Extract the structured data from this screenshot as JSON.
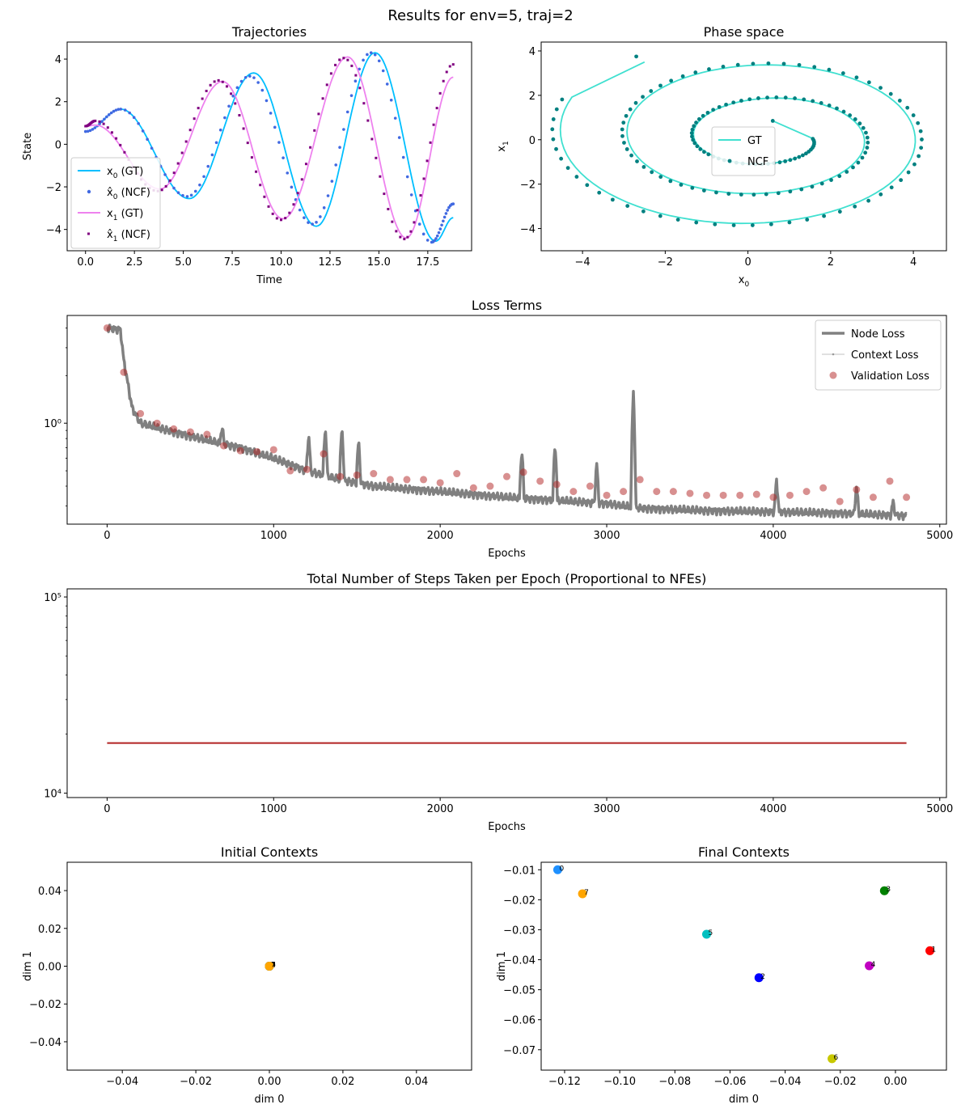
{
  "figure": {
    "suptitle": "Results for env=5, traj=2"
  },
  "colors": {
    "x0_gt": "#00bfff",
    "x0_ncf": "#4169e1",
    "x1_gt": "#ee82ee",
    "x1_ncf": "#800080",
    "phase_gt": "#40e0d0",
    "phase_ncf": "#008080",
    "node_loss": "#808080",
    "context_loss": "#c0c0c0",
    "val_loss": "#b22222",
    "nfe": "#b22222"
  },
  "chart_data": [
    {
      "id": "trajectories",
      "type": "line",
      "title": "Trajectories",
      "xlabel": "Time",
      "ylabel": "State",
      "xlim": [
        -0.94,
        19.74
      ],
      "ylim": [
        -5.0,
        4.8
      ],
      "xticks": [
        0.0,
        2.5,
        5.0,
        7.5,
        10.0,
        12.5,
        15.0,
        17.5
      ],
      "xtick_labels": [
        "0.0",
        "2.5",
        "5.0",
        "7.5",
        "10.0",
        "12.5",
        "15.0",
        "17.5"
      ],
      "yticks": [
        -4,
        -2,
        0,
        2,
        4
      ],
      "ytick_labels": [
        "−4",
        "−2",
        "0",
        "2",
        "4"
      ],
      "legend": {
        "position": "lower-left",
        "entries": [
          "x0 (GT)",
          "x̂0 (NCF)",
          "x1 (GT)",
          "x̂1 (NCF)"
        ]
      },
      "series": [
        {
          "name": "x0 (GT)",
          "style": "line",
          "x": [
            0.0,
            1.8,
            5.3,
            8.6,
            11.8,
            14.8,
            17.9,
            18.8
          ],
          "y": [
            0.6,
            1.65,
            -2.55,
            3.35,
            -3.85,
            4.3,
            -4.55,
            -3.45
          ]
        },
        {
          "name": "x̂0 (NCF)",
          "style": "dots",
          "x": [
            0.0,
            1.8,
            5.2,
            8.4,
            11.6,
            14.6,
            17.7,
            18.8
          ],
          "y": [
            0.6,
            1.65,
            -2.45,
            3.2,
            -3.75,
            4.3,
            -4.6,
            -2.8
          ]
        },
        {
          "name": "x1 (GT)",
          "style": "line",
          "x": [
            0.0,
            0.5,
            3.8,
            7.0,
            10.1,
            13.4,
            16.4,
            18.8
          ],
          "y": [
            0.85,
            0.9,
            -2.1,
            2.95,
            -3.5,
            4.1,
            -4.4,
            3.15
          ]
        },
        {
          "name": "x̂1 (NCF)",
          "style": "squares",
          "x": [
            0.0,
            0.5,
            3.7,
            6.8,
            10.0,
            13.2,
            16.3,
            18.8
          ],
          "y": [
            0.85,
            1.1,
            -2.2,
            3.0,
            -3.55,
            4.05,
            -4.45,
            3.75
          ]
        }
      ]
    },
    {
      "id": "phase-space",
      "type": "line",
      "title": "Phase space",
      "xlabel": "x0",
      "ylabel": "x1",
      "xlim": [
        -5.0,
        4.8
      ],
      "ylim": [
        -5.0,
        4.4
      ],
      "xticks": [
        -4,
        -2,
        0,
        2,
        4
      ],
      "xtick_labels": [
        "−4",
        "−2",
        "0",
        "2",
        "4"
      ],
      "yticks": [
        -4,
        -2,
        0,
        2,
        4
      ],
      "ytick_labels": [
        "−4",
        "−2",
        "0",
        "2",
        "4"
      ],
      "legend": {
        "position": "center",
        "entries": [
          "GT",
          "NCF"
        ]
      },
      "series": [
        {
          "name": "GT",
          "style": "line",
          "spiral_start": [
            0.6,
            0.85
          ],
          "spiral_end": [
            -2.5,
            3.5
          ]
        },
        {
          "name": "NCF",
          "style": "dots",
          "spiral_start": [
            0.6,
            0.85
          ],
          "spiral_end": [
            -2.7,
            3.75
          ]
        }
      ]
    },
    {
      "id": "loss-terms",
      "type": "line",
      "title": "Loss Terms",
      "xlabel": "Epochs",
      "ylabel": "",
      "yscale": "log",
      "xlim": [
        -240,
        5040
      ],
      "ylim": [
        0.23,
        4.8
      ],
      "xticks": [
        0,
        1000,
        2000,
        3000,
        4000,
        5000
      ],
      "xtick_labels": [
        "0",
        "1000",
        "2000",
        "3000",
        "4000",
        "5000"
      ],
      "yticks": [
        1.0
      ],
      "ytick_labels": [
        "10⁰"
      ],
      "legend": {
        "position": "top-right",
        "entries": [
          "Node Loss",
          "Context Loss",
          "Validation Loss"
        ]
      },
      "series": [
        {
          "name": "Node Loss",
          "style": "thick-line",
          "x": [
            0,
            80,
            100,
            150,
            200,
            400,
            600,
            800,
            1000,
            1200,
            1400,
            1600,
            2000,
            2400,
            2800,
            3000,
            3200,
            3600,
            4000,
            4400,
            4800
          ],
          "y": [
            4.0,
            3.9,
            2.5,
            1.25,
            1.0,
            0.88,
            0.78,
            0.7,
            0.6,
            0.5,
            0.44,
            0.4,
            0.37,
            0.34,
            0.32,
            0.31,
            0.29,
            0.28,
            0.275,
            0.27,
            0.26
          ],
          "spikes": [
            [
              690,
              0.95
            ],
            [
              1210,
              0.85
            ],
            [
              1310,
              0.95
            ],
            [
              1410,
              0.95
            ],
            [
              1510,
              0.78
            ],
            [
              2490,
              0.68
            ],
            [
              2690,
              0.75
            ],
            [
              2940,
              0.55
            ],
            [
              3160,
              1.6
            ],
            [
              4020,
              0.44
            ],
            [
              4500,
              0.4
            ],
            [
              4720,
              0.32
            ]
          ]
        },
        {
          "name": "Context Loss",
          "style": "thin-line",
          "x": [],
          "y": []
        },
        {
          "name": "Validation Loss",
          "style": "circles",
          "x": [
            0,
            100,
            200,
            300,
            400,
            500,
            600,
            700,
            800,
            900,
            1000,
            1100,
            1200,
            1300,
            1400,
            1500,
            1600,
            1700,
            1800,
            1900,
            2000,
            2100,
            2200,
            2300,
            2400,
            2500,
            2600,
            2700,
            2800,
            2900,
            3000,
            3100,
            3200,
            3300,
            3400,
            3500,
            3600,
            3700,
            3800,
            3900,
            4000,
            4100,
            4200,
            4300,
            4400,
            4500,
            4600,
            4700,
            4800
          ],
          "y": [
            4.0,
            2.1,
            1.15,
            1.0,
            0.92,
            0.88,
            0.85,
            0.72,
            0.67,
            0.66,
            0.68,
            0.5,
            0.51,
            0.64,
            0.46,
            0.47,
            0.48,
            0.44,
            0.44,
            0.44,
            0.42,
            0.48,
            0.39,
            0.4,
            0.46,
            0.49,
            0.43,
            0.41,
            0.37,
            0.4,
            0.35,
            0.37,
            0.44,
            0.37,
            0.37,
            0.36,
            0.35,
            0.35,
            0.35,
            0.355,
            0.34,
            0.35,
            0.37,
            0.39,
            0.32,
            0.38,
            0.34,
            0.43,
            0.34
          ]
        }
      ]
    },
    {
      "id": "nfe",
      "type": "line",
      "title": "Total Number of Steps Taken per Epoch (Proportional to NFEs)",
      "xlabel": "Epochs",
      "ylabel": "",
      "yscale": "log",
      "xlim": [
        -240,
        5040
      ],
      "ylim": [
        9500,
        110000
      ],
      "xticks": [
        0,
        1000,
        2000,
        3000,
        4000,
        5000
      ],
      "xtick_labels": [
        "0",
        "1000",
        "2000",
        "3000",
        "4000",
        "5000"
      ],
      "yticks": [
        10000,
        100000
      ],
      "ytick_labels": [
        "10⁴",
        "10⁵"
      ],
      "series": [
        {
          "name": "",
          "x": [
            0,
            4800
          ],
          "y": [
            18000,
            18000
          ]
        }
      ]
    },
    {
      "id": "initial-contexts",
      "type": "scatter",
      "title": "Initial Contexts",
      "xlabel": "dim 0",
      "ylabel": "dim 1",
      "xlim": [
        -0.055,
        0.055
      ],
      "ylim": [
        -0.055,
        0.055
      ],
      "xticks": [
        -0.04,
        -0.02,
        0.0,
        0.02,
        0.04
      ],
      "xtick_labels": [
        "−0.04",
        "−0.02",
        "0.00",
        "0.02",
        "0.04"
      ],
      "yticks": [
        -0.04,
        -0.02,
        0.0,
        0.02,
        0.04
      ],
      "ytick_labels": [
        "−0.04",
        "−0.02",
        "0.00",
        "0.02",
        "0.04"
      ],
      "points": [
        {
          "label": "0",
          "x": 0,
          "y": 0,
          "color": "#1e90ff"
        },
        {
          "label": "1",
          "x": 0,
          "y": 0,
          "color": "#ff0000"
        },
        {
          "label": "2",
          "x": 0,
          "y": 0,
          "color": "#0000ff"
        },
        {
          "label": "3",
          "x": 0,
          "y": 0,
          "color": "#008000"
        },
        {
          "label": "4",
          "x": 0,
          "y": 0,
          "color": "#c000c0"
        },
        {
          "label": "5",
          "x": 0,
          "y": 0,
          "color": "#00c0c0"
        },
        {
          "label": "6",
          "x": 0,
          "y": 0,
          "color": "#c8c800"
        },
        {
          "label": "7",
          "x": 0,
          "y": 0,
          "color": "#ffa500"
        }
      ]
    },
    {
      "id": "final-contexts",
      "type": "scatter",
      "title": "Final Contexts",
      "xlabel": "dim 0",
      "ylabel": "dim 1",
      "xlim": [
        -0.1285,
        0.0185
      ],
      "ylim": [
        -0.0768,
        -0.0075
      ],
      "xticks": [
        -0.12,
        -0.1,
        -0.08,
        -0.06,
        -0.04,
        -0.02,
        0.0
      ],
      "xtick_labels": [
        "−0.12",
        "−0.10",
        "−0.08",
        "−0.06",
        "−0.04",
        "−0.02",
        "0.00"
      ],
      "yticks": [
        -0.01,
        -0.02,
        -0.03,
        -0.04,
        -0.05,
        -0.06,
        -0.07
      ],
      "ytick_labels": [
        "−0.01",
        "−0.02",
        "−0.03",
        "−0.04",
        "−0.05",
        "−0.06",
        "−0.07"
      ],
      "points": [
        {
          "label": "0",
          "x": -0.1225,
          "y": -0.01,
          "color": "#1e90ff"
        },
        {
          "label": "1",
          "x": 0.0125,
          "y": -0.037,
          "color": "#ff0000"
        },
        {
          "label": "2",
          "x": -0.0495,
          "y": -0.046,
          "color": "#0000ff"
        },
        {
          "label": "3",
          "x": -0.004,
          "y": -0.017,
          "color": "#008000"
        },
        {
          "label": "4",
          "x": -0.0095,
          "y": -0.042,
          "color": "#c000c0"
        },
        {
          "label": "5",
          "x": -0.0685,
          "y": -0.0315,
          "color": "#00c0c0"
        },
        {
          "label": "6",
          "x": -0.023,
          "y": -0.073,
          "color": "#c8c800"
        },
        {
          "label": "7",
          "x": -0.1135,
          "y": -0.018,
          "color": "#ffa500"
        }
      ]
    }
  ]
}
